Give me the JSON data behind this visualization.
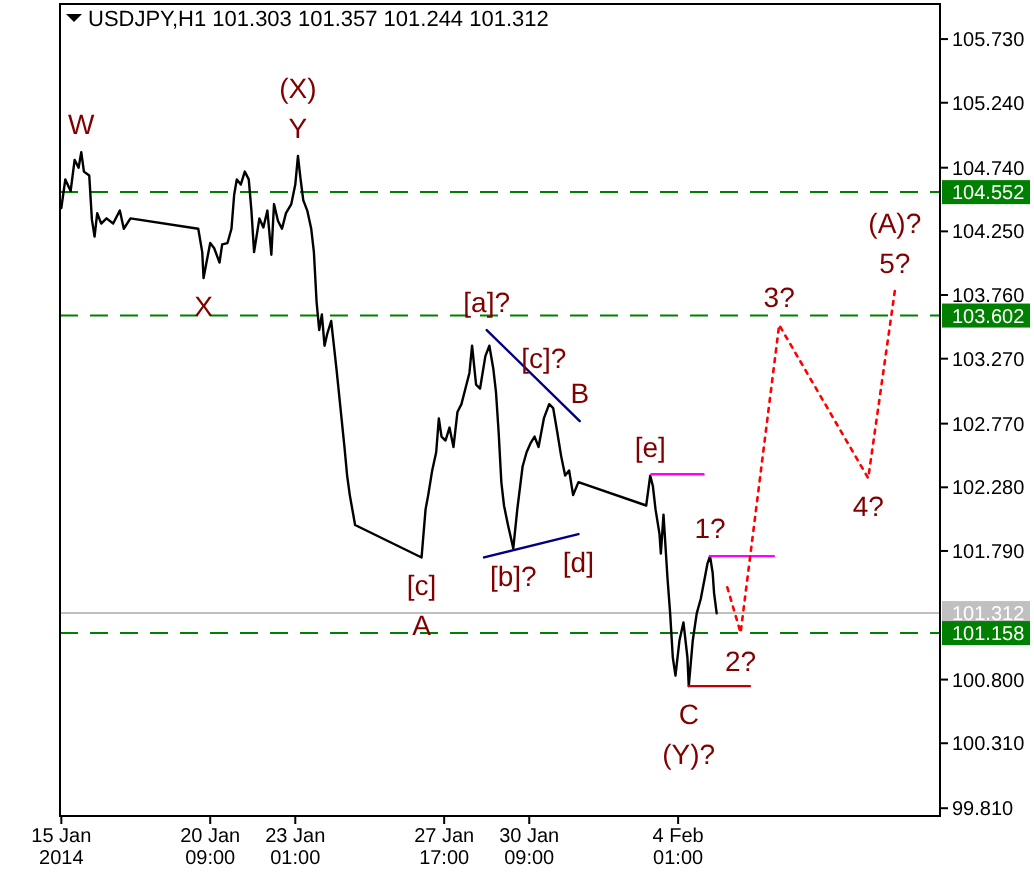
{
  "chart_data": {
    "type": "line",
    "title": "USDJPY,H1  101.303 101.357 101.244 101.312",
    "xlim": [
      "2014-01-15T16:00",
      "2014-02-12T06:00"
    ],
    "ylim": [
      99.75,
      106.0
    ],
    "xticks": [
      {
        "value": "2014-01-15T17:00",
        "label": "15 Jan 2014"
      },
      {
        "value": "2014-01-20T09:00",
        "label": "20 Jan 09:00"
      },
      {
        "value": "2014-01-23T01:00",
        "label": "23 Jan 01:00"
      },
      {
        "value": "2014-01-27T17:00",
        "label": "27 Jan 17:00"
      },
      {
        "value": "2014-01-30T09:00",
        "label": "30 Jan 09:00"
      },
      {
        "value": "2014-02-04T01:00",
        "label": "4 Feb 01:00"
      }
    ],
    "yticks": [
      {
        "value": 99.81,
        "label": "99.810"
      },
      {
        "value": 100.31,
        "label": "100.310"
      },
      {
        "value": 100.8,
        "label": "100.800"
      },
      {
        "value": 101.79,
        "label": "101.790"
      },
      {
        "value": 102.28,
        "label": "102.280"
      },
      {
        "value": 102.77,
        "label": "102.770"
      },
      {
        "value": 103.27,
        "label": "103.270"
      },
      {
        "value": 103.76,
        "label": "103.760"
      },
      {
        "value": 104.25,
        "label": "104.250"
      },
      {
        "value": 104.74,
        "label": "104.740"
      },
      {
        "value": 105.24,
        "label": "105.240"
      },
      {
        "value": 105.73,
        "label": "105.730"
      }
    ],
    "grid": false,
    "series": [
      {
        "color": "#000000",
        "x": [
          "2014-01-15T17:00",
          "2014-01-15T20:00",
          "2014-01-16T00:00",
          "2014-01-16T03:00",
          "2014-01-16T06:00",
          "2014-01-16T08:00",
          "2014-01-16T10:00",
          "2014-01-16T14:00",
          "2014-01-16T16:00",
          "2014-01-16T18:00",
          "2014-01-16T20:00",
          "2014-01-16T23:00",
          "2014-01-17T03:00",
          "2014-01-17T08:00",
          "2014-01-17T13:00",
          "2014-01-17T16:00",
          "2014-01-17T21:00",
          "2014-01-20T00:00",
          "2014-01-20T03:00",
          "2014-01-20T04:00",
          "2014-01-20T06:00",
          "2014-01-20T09:00",
          "2014-01-20T12:00",
          "2014-01-20T16:00",
          "2014-01-20T18:00",
          "2014-01-20T22:00",
          "2014-01-21T01:00",
          "2014-01-21T03:00",
          "2014-01-21T05:00",
          "2014-01-21T08:00",
          "2014-01-21T11:00",
          "2014-01-21T14:00",
          "2014-01-21T16:00",
          "2014-01-21T18:00",
          "2014-01-21T22:00",
          "2014-01-22T01:00",
          "2014-01-22T04:00",
          "2014-01-22T07:00",
          "2014-01-22T09:00",
          "2014-01-22T12:00",
          "2014-01-22T15:00",
          "2014-01-22T18:00",
          "2014-01-22T22:00",
          "2014-01-23T01:00",
          "2014-01-23T03:00",
          "2014-01-23T05:00",
          "2014-01-23T07:00",
          "2014-01-23T10:00",
          "2014-01-23T13:00",
          "2014-01-23T15:00",
          "2014-01-23T17:00",
          "2014-01-23T19:00",
          "2014-01-23T21:00",
          "2014-01-23T23:00",
          "2014-01-24T01:00",
          "2014-01-24T04:00",
          "2014-01-24T08:00",
          "2014-01-24T11:00",
          "2014-01-24T14:00",
          "2014-01-24T16:00",
          "2014-01-24T18:00",
          "2014-01-24T22:00",
          "2014-01-27T00:00",
          "2014-01-27T03:00",
          "2014-01-27T05:00",
          "2014-01-27T08:00",
          "2014-01-27T11:00",
          "2014-01-27T13:00",
          "2014-01-27T15:00",
          "2014-01-27T18:00",
          "2014-01-27T21:00",
          "2014-01-28T00:00",
          "2014-01-28T03:00",
          "2014-01-28T06:00",
          "2014-01-28T09:00",
          "2014-01-28T12:00",
          "2014-01-28T14:00",
          "2014-01-28T17:00",
          "2014-01-28T20:00",
          "2014-01-29T00:00",
          "2014-01-29T03:00",
          "2014-01-29T06:00",
          "2014-01-29T08:00",
          "2014-01-29T10:00",
          "2014-01-29T12:00",
          "2014-01-29T14:00",
          "2014-01-29T17:00",
          "2014-01-29T21:00",
          "2014-01-30T00:00",
          "2014-01-30T04:00",
          "2014-01-30T07:00",
          "2014-01-30T10:00",
          "2014-01-30T13:00",
          "2014-01-30T16:00",
          "2014-01-30T20:00",
          "2014-01-31T00:00",
          "2014-01-31T03:00",
          "2014-01-31T06:00",
          "2014-01-31T09:00",
          "2014-01-31T12:00",
          "2014-01-31T15:00",
          "2014-01-31T18:00",
          "2014-01-31T22:00",
          "2014-02-03T01:00",
          "2014-02-03T04:00",
          "2014-02-03T06:00",
          "2014-02-03T08:00",
          "2014-02-03T11:00",
          "2014-02-03T12:00",
          "2014-02-03T14:00",
          "2014-02-03T17:00",
          "2014-02-03T19:00",
          "2014-02-03T21:00",
          "2014-02-03T23:00",
          "2014-02-04T02:00",
          "2014-02-04T05:00",
          "2014-02-04T08:00",
          "2014-02-04T09:00",
          "2014-02-04T12:00",
          "2014-02-04T15:00",
          "2014-02-04T18:00",
          "2014-02-04T21:00",
          "2014-02-04T23:00",
          "2014-02-05T01:00",
          "2014-02-05T03:00",
          "2014-02-05T04:00",
          "2014-02-05T06:00"
        ],
        "values": [
          104.43,
          104.65,
          104.56,
          104.8,
          104.74,
          104.86,
          104.71,
          104.68,
          104.34,
          104.21,
          104.39,
          104.31,
          104.35,
          104.31,
          104.41,
          104.27,
          104.35,
          104.27,
          104.09,
          103.89,
          104.0,
          104.16,
          104.12,
          104.01,
          104.15,
          104.16,
          104.27,
          104.53,
          104.65,
          104.61,
          104.71,
          104.65,
          104.41,
          104.09,
          104.35,
          104.28,
          104.41,
          104.07,
          104.46,
          104.33,
          104.27,
          104.39,
          104.46,
          104.61,
          104.83,
          104.65,
          104.49,
          104.41,
          104.27,
          104.09,
          103.71,
          103.49,
          103.61,
          103.37,
          103.46,
          103.56,
          103.19,
          102.89,
          102.59,
          102.37,
          102.22,
          101.99,
          101.74,
          102.11,
          102.22,
          102.41,
          102.55,
          102.81,
          102.67,
          102.64,
          102.74,
          102.59,
          102.86,
          102.92,
          103.04,
          103.16,
          103.37,
          103.07,
          103.04,
          103.29,
          103.37,
          103.19,
          103.01,
          102.7,
          102.32,
          102.14,
          101.99,
          101.81,
          102.11,
          102.44,
          102.55,
          102.62,
          102.67,
          102.59,
          102.81,
          102.92,
          102.89,
          102.71,
          102.52,
          102.37,
          102.41,
          102.22,
          102.32,
          102.14,
          102.37,
          102.29,
          102.11,
          101.92,
          101.77,
          102.07,
          101.58,
          101.31,
          100.97,
          100.83,
          101.1,
          101.24,
          100.97,
          100.75,
          101.1,
          101.31,
          101.42,
          101.58,
          101.69,
          101.75,
          101.62,
          101.47,
          101.31
        ]
      },
      {
        "color": "#000080",
        "x": [
          "2014-01-29T01:00",
          "2014-01-31T23:00"
        ],
        "values": [
          103.49,
          102.79
        ]
      },
      {
        "color": "#000080",
        "x": [
          "2014-01-28T23:00",
          "2014-01-31T22:00"
        ],
        "values": [
          101.74,
          101.92
        ]
      },
      {
        "color": "#ff00ff",
        "x": [
          "2014-02-03T05:00",
          "2014-02-04T20:00"
        ],
        "values": [
          102.38,
          102.38
        ]
      },
      {
        "color": "#ff00ff",
        "x": [
          "2014-02-05T01:00",
          "2014-02-07T01:00"
        ],
        "values": [
          101.75,
          101.75
        ]
      },
      {
        "color": "#c00000",
        "x": [
          "2014-02-04T09:00",
          "2014-02-06T07:00"
        ],
        "values": [
          100.75,
          100.75
        ]
      },
      {
        "color": "#ff0000",
        "line_style": "dotted",
        "x": [
          "2014-02-05T14:00",
          "2014-02-06T00:00",
          "2014-02-07T05:00",
          "2014-02-10T00:00",
          "2014-02-10T20:00"
        ],
        "values": [
          101.51,
          101.16,
          103.53,
          102.35,
          103.79
        ]
      }
    ],
    "ref_lines": [
      {
        "axis": "y",
        "value": 104.552,
        "label": "104.552",
        "color": "#008000",
        "line_style": "dashed"
      },
      {
        "axis": "y",
        "value": 103.602,
        "label": "103.602",
        "color": "#008000",
        "line_style": "dashed"
      },
      {
        "axis": "y",
        "value": 101.312,
        "label": "101.312",
        "color": "#c0c0c0",
        "line_style": "solid"
      },
      {
        "axis": "y",
        "value": 101.158,
        "label": "101.158",
        "color": "#008000",
        "line_style": "dashed"
      }
    ],
    "annotations": [
      {
        "text": "W",
        "x": "2014-01-16T08:00",
        "y": 104.86
      },
      {
        "text": "X",
        "x": "2014-01-20T04:00",
        "y": 103.89
      },
      {
        "text": "Y",
        "x": "2014-01-23T03:00",
        "y": 104.83
      },
      {
        "text": "(X)",
        "x": "2014-01-23T03:00",
        "y": 104.83
      },
      {
        "text": "[c]",
        "x": "2014-01-27T00:00",
        "y": 101.74
      },
      {
        "text": "A",
        "x": "2014-01-27T00:00",
        "y": 101.74
      },
      {
        "text": "[a]?",
        "x": "2014-01-29T01:00",
        "y": 103.49
      },
      {
        "text": "[b]?",
        "x": "2014-01-29T21:00",
        "y": 101.81
      },
      {
        "text": "[c]?",
        "x": "2014-01-30T20:00",
        "y": 103.06
      },
      {
        "text": "B",
        "x": "2014-01-31T23:00",
        "y": 102.79
      },
      {
        "text": "[e]",
        "x": "2014-02-03T04:00",
        "y": 102.37
      },
      {
        "text": "[d]",
        "x": "2014-01-31T22:00",
        "y": 101.92
      },
      {
        "text": "C",
        "x": "2014-02-04T09:00",
        "y": 100.75
      },
      {
        "text": "(Y)?",
        "x": "2014-02-04T09:00",
        "y": 100.75
      },
      {
        "text": "1?",
        "x": "2014-02-05T01:00",
        "y": 101.75
      },
      {
        "text": "2?",
        "x": "2014-02-06T00:00",
        "y": 101.16
      },
      {
        "text": "3?",
        "x": "2014-02-07T05:00",
        "y": 103.53
      },
      {
        "text": "4?",
        "x": "2014-02-10T00:00",
        "y": 102.35
      },
      {
        "text": "5?",
        "x": "2014-02-10T20:00",
        "y": 103.79
      },
      {
        "text": "(A)?",
        "x": "2014-02-10T20:00",
        "y": 103.79
      }
    ]
  }
}
